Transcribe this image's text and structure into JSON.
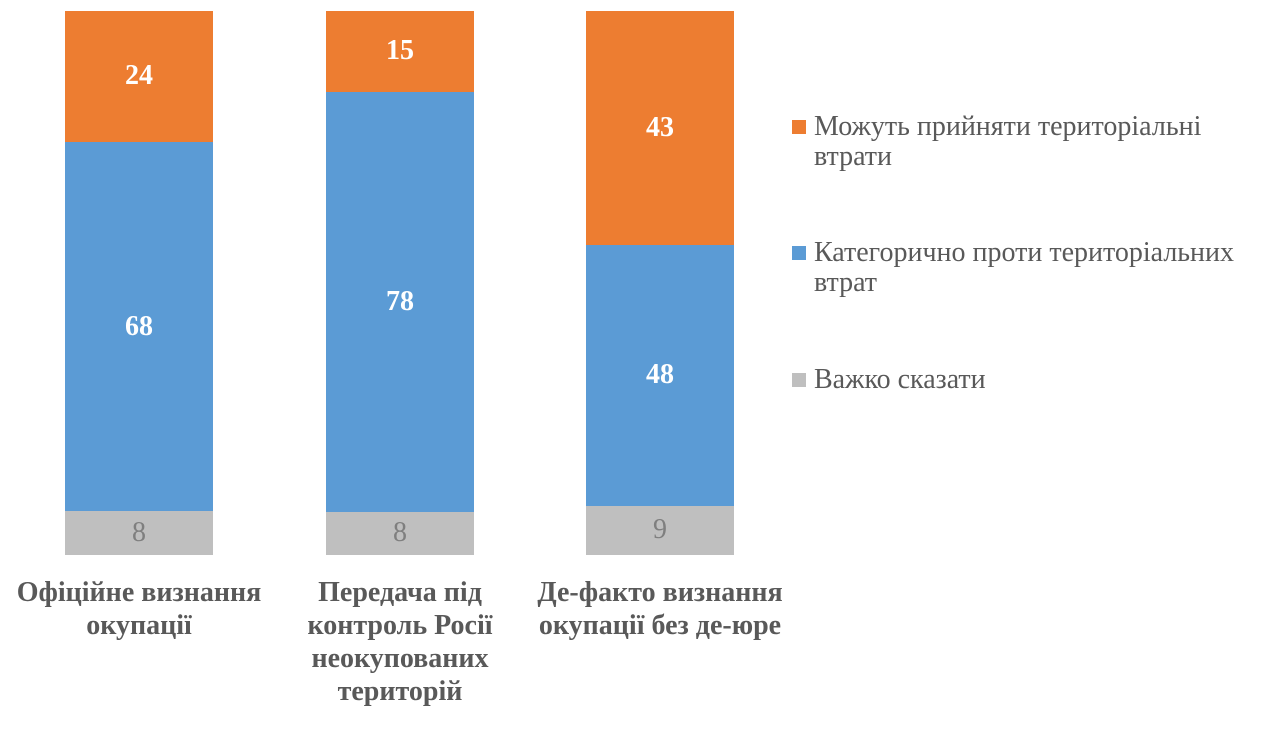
{
  "chart_data": {
    "type": "bar",
    "stacked": true,
    "orientation": "vertical",
    "title": "",
    "xlabel": "",
    "ylabel": "",
    "axes_visible": false,
    "grid": false,
    "legend_position": "right",
    "categories": [
      "Офіційне визнання окупації",
      "Передача під контроль Росії неокупованих територій",
      "Де-факто визнання окупації без де-юре"
    ],
    "category_lines": [
      [
        "Офіційне визнання",
        "окупації"
      ],
      [
        "Передача під",
        "контроль Росії",
        "неокупованих",
        "територій"
      ],
      [
        "Де-факто визнання",
        "окупації без де-юре"
      ]
    ],
    "series": [
      {
        "name": "Можуть прийняти територіальні втрати",
        "color": "#ED7D31",
        "label_color": "#FFFFFF",
        "label_bold": true,
        "values": [
          24,
          15,
          43
        ]
      },
      {
        "name": "Категорично проти територіальних втрат",
        "color": "#5B9BD5",
        "label_color": "#FFFFFF",
        "label_bold": true,
        "values": [
          68,
          78,
          48
        ]
      },
      {
        "name": "Важко сказати",
        "color": "#BFBFBF",
        "label_color": "#7F7F7F",
        "label_bold": false,
        "values": [
          8,
          8,
          9
        ]
      }
    ]
  },
  "legend": {
    "items": [
      {
        "color": "#ED7D31",
        "lines": [
          "Можуть прийняти територіальні",
          "втрати"
        ]
      },
      {
        "color": "#5B9BD5",
        "lines": [
          "Категорично проти територіальних",
          "втрат"
        ]
      },
      {
        "color": "#BFBFBF",
        "lines": [
          "Важко сказати"
        ]
      }
    ]
  },
  "text_colors": {
    "category_label": "#595959",
    "legend_text": "#595959"
  }
}
